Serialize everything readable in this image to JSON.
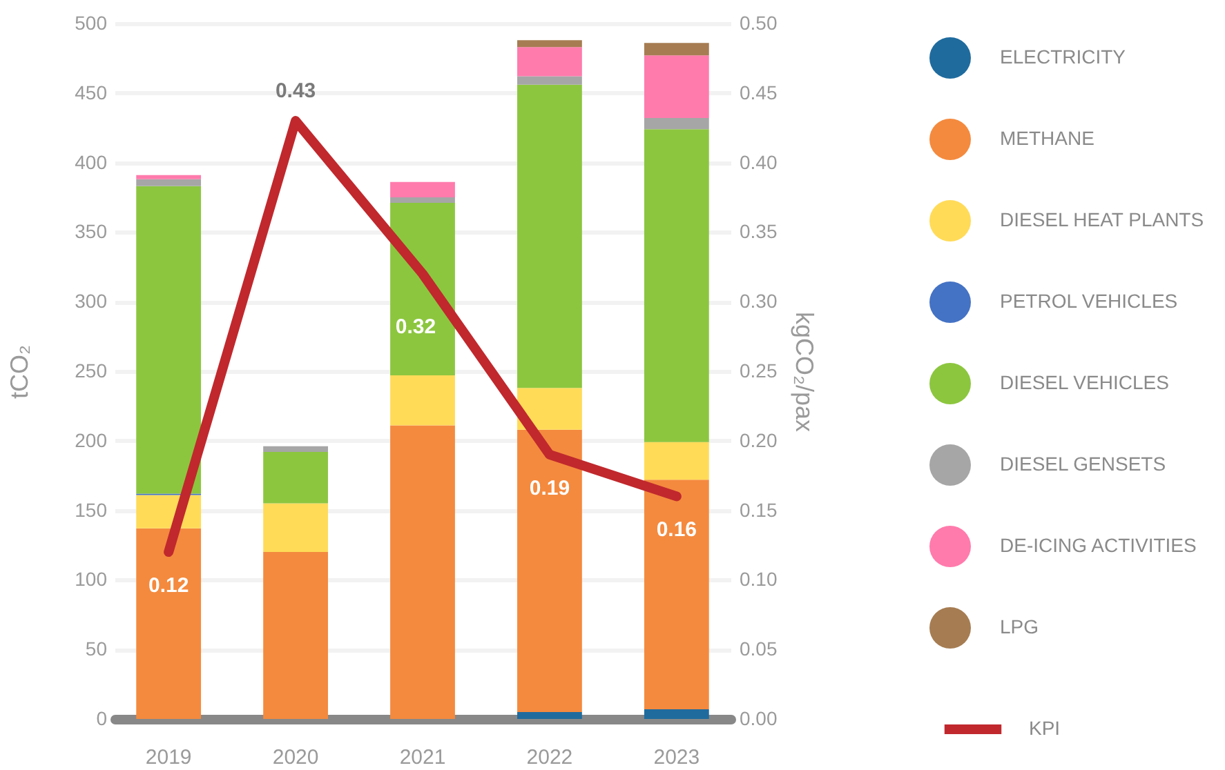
{
  "chart_data": {
    "type": "bar",
    "stacked": true,
    "categories": [
      "2019",
      "2020",
      "2021",
      "2022",
      "2023"
    ],
    "ylabel": "tCO₂",
    "y2label": "kgCO₂/pax",
    "ylim": [
      0,
      500
    ],
    "yticks": [
      0,
      50,
      100,
      150,
      200,
      250,
      300,
      350,
      400,
      450,
      500
    ],
    "y2lim": [
      0,
      0.5
    ],
    "y2ticks": [
      {
        "value": 0,
        "label": "0.00"
      },
      {
        "value": 0.05,
        "label": "0.05"
      },
      {
        "value": 0.1,
        "label": "0.10"
      },
      {
        "value": 0.15,
        "label": "0.15"
      },
      {
        "value": 0.2,
        "label": "0.20"
      },
      {
        "value": 0.25,
        "label": "0.25"
      },
      {
        "value": 0.3,
        "label": "0.30"
      },
      {
        "value": 0.35,
        "label": "0.35"
      },
      {
        "value": 0.4,
        "label": "0.40"
      },
      {
        "value": 0.45,
        "label": "0.45"
      },
      {
        "value": 0.5,
        "label": "0.50"
      }
    ],
    "grid": "y",
    "legend": "right",
    "series": [
      {
        "name": "ELECTRICITY",
        "color": "#1f6b9e",
        "values": [
          0,
          0,
          0,
          5,
          7
        ]
      },
      {
        "name": "METHANE",
        "color": "#f48a3e",
        "values": [
          137,
          120,
          211,
          203,
          165
        ]
      },
      {
        "name": "DIESEL HEAT PLANTS",
        "color": "#ffdb58",
        "values": [
          24,
          35,
          36,
          30,
          27
        ]
      },
      {
        "name": "PETROL VEHICLES",
        "color": "#4472c4",
        "values": [
          1,
          0,
          0,
          0,
          0
        ]
      },
      {
        "name": "DIESEL VEHICLES",
        "color": "#8cc63f",
        "values": [
          221,
          37,
          124,
          218,
          225
        ]
      },
      {
        "name": "DIESEL GENSETS",
        "color": "#a6a6a6",
        "values": [
          5,
          4,
          4,
          6,
          8
        ]
      },
      {
        "name": "DE-ICING ACTIVITIES",
        "color": "#ff7bac",
        "values": [
          3,
          0,
          11,
          21,
          45
        ]
      },
      {
        "name": "LPG",
        "color": "#a67c52",
        "values": [
          0,
          0,
          0,
          5,
          9
        ]
      },
      {
        "name": "KPI",
        "type": "line",
        "axis": "y2",
        "color": "#c0282d",
        "line_style": "solid",
        "values": [
          0.12,
          0.43,
          0.32,
          0.19,
          0.16
        ],
        "value_labels": [
          "0.12",
          "0.43",
          "0.32",
          "0.19",
          "0.16"
        ]
      }
    ]
  }
}
